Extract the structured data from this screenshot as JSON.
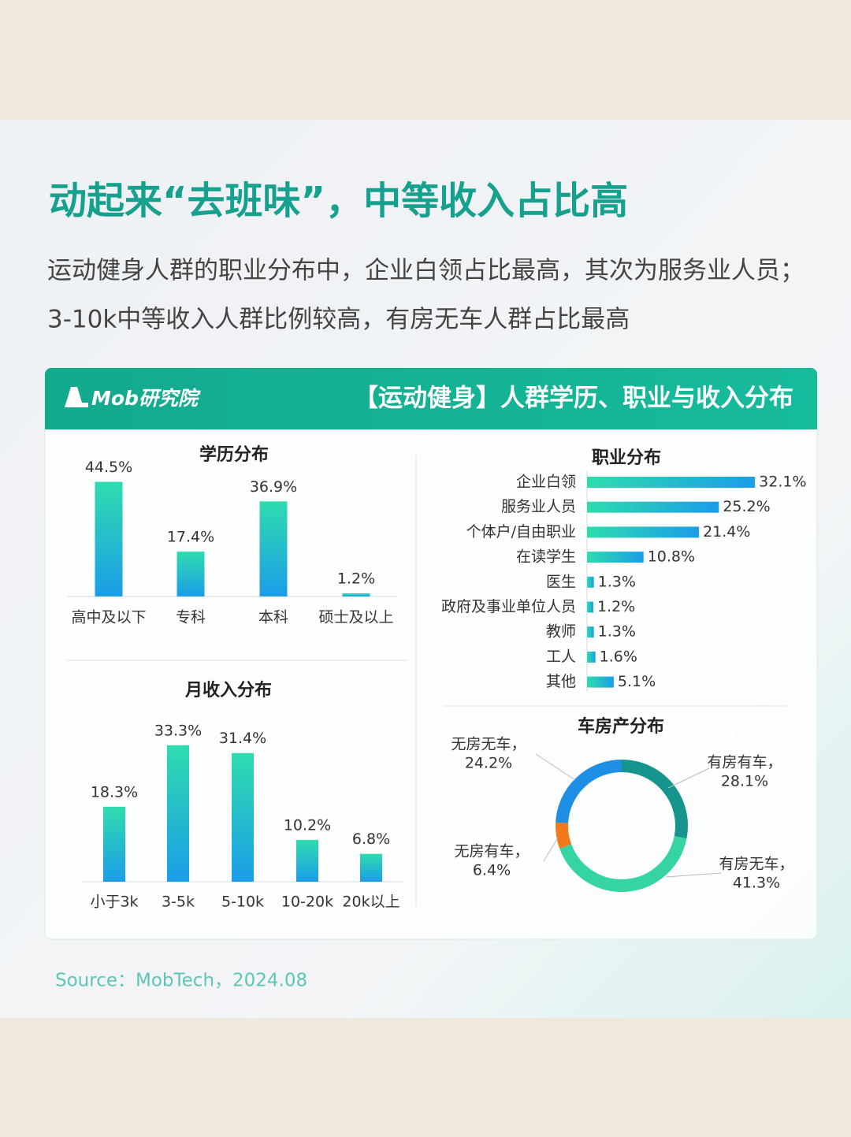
{
  "title": "动起来“去班味”，中等收入占比高",
  "subtitle": [
    "运动健身人群的职业分布中，企业白领占比最高，其次为服务业人员；",
    "3-10k中等收入人群比例较高，有房无车人群占比最高"
  ],
  "banner": {
    "brand": "Mob研究院",
    "title": "【运动健身】人群学历、职业与收入分布"
  },
  "source": "Source：MobTech，2024.08",
  "chart_data": [
    {
      "type": "bar",
      "title": "学历分布",
      "categories": [
        "高中及以下",
        "专科",
        "本科",
        "硕士及以上"
      ],
      "values": [
        44.5,
        17.4,
        36.9,
        1.2
      ],
      "value_labels": [
        "44.5%",
        "17.4%",
        "36.9%",
        "1.2%"
      ],
      "colors": [
        "#2fdcae",
        "#1b9de8"
      ]
    },
    {
      "type": "bar",
      "title": "月收入分布",
      "categories": [
        "小于3k",
        "3-5k",
        "5-10k",
        "10-20k",
        "20k以上"
      ],
      "values": [
        18.3,
        33.3,
        31.4,
        10.2,
        6.8
      ],
      "value_labels": [
        "18.3%",
        "33.3%",
        "31.4%",
        "10.2%",
        "6.8%"
      ],
      "colors": [
        "#2fdcae",
        "#1b9de8"
      ]
    },
    {
      "type": "barh",
      "title": "职业分布",
      "categories": [
        "企业白领",
        "服务业人员",
        "个体户/自由职业",
        "在读学生",
        "医生",
        "政府及事业单位人员",
        "教师",
        "工人",
        "其他"
      ],
      "values": [
        32.1,
        25.2,
        21.4,
        10.8,
        1.3,
        1.2,
        1.3,
        1.6,
        5.1
      ],
      "value_labels": [
        "32.1%",
        "25.2%",
        "21.4%",
        "10.8%",
        "1.3%",
        "1.2%",
        "1.3%",
        "1.6%",
        "5.1%"
      ],
      "colors": [
        "#2fdcae",
        "#1b9de8"
      ]
    },
    {
      "type": "pie",
      "donut": true,
      "title": "车房产分布",
      "categories": [
        "有房有车，",
        "有房无车，",
        "无房有车，",
        "无房无车，"
      ],
      "values": [
        28.1,
        41.3,
        6.4,
        24.2
      ],
      "value_labels": [
        "28.1%",
        "41.3%",
        "6.4%",
        "24.2%"
      ],
      "colors": [
        "#16948e",
        "#36d3a4",
        "#f07a1c",
        "#1f8fe6"
      ]
    }
  ]
}
